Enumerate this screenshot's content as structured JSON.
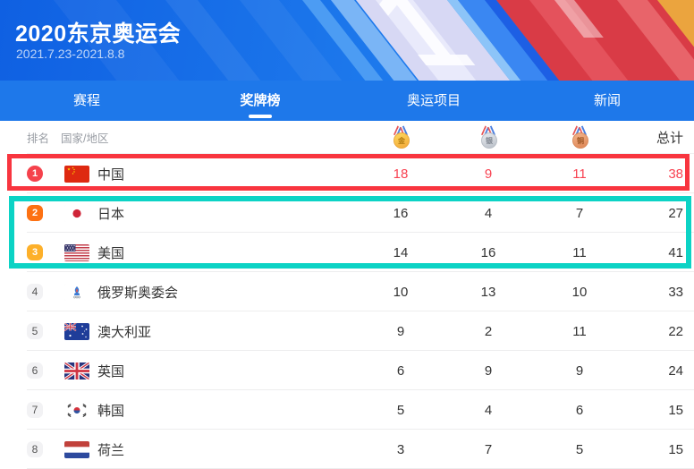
{
  "header": {
    "title": "2020东京奥运会",
    "date_range": "2021.7.23-2021.8.8",
    "decor_number": "1"
  },
  "nav": {
    "tabs": [
      {
        "label": "赛程",
        "active": false
      },
      {
        "label": "奖牌榜",
        "active": true
      },
      {
        "label": "奥运项目",
        "active": false
      },
      {
        "label": "新闻",
        "active": false
      }
    ]
  },
  "table": {
    "columns": {
      "rank": "排名",
      "country": "国家/地区",
      "total": "总计"
    },
    "medal_columns": [
      {
        "name": "gold-medal-icon",
        "char": "金"
      },
      {
        "name": "silver-medal-icon",
        "char": "银"
      },
      {
        "name": "bronze-medal-icon",
        "char": "铜"
      }
    ],
    "rows": [
      {
        "rank": 1,
        "country": "中国",
        "flag": "cn",
        "gold": 18,
        "silver": 9,
        "bronze": 11,
        "total": 38,
        "numbers_red": true
      },
      {
        "rank": 2,
        "country": "日本",
        "flag": "jp",
        "gold": 16,
        "silver": 4,
        "bronze": 7,
        "total": 27,
        "numbers_red": false
      },
      {
        "rank": 3,
        "country": "美国",
        "flag": "us",
        "gold": 14,
        "silver": 16,
        "bronze": 11,
        "total": 41,
        "numbers_red": false
      },
      {
        "rank": 4,
        "country": "俄罗斯奥委会",
        "flag": "roc",
        "gold": 10,
        "silver": 13,
        "bronze": 10,
        "total": 33,
        "numbers_red": false
      },
      {
        "rank": 5,
        "country": "澳大利亚",
        "flag": "au",
        "gold": 9,
        "silver": 2,
        "bronze": 11,
        "total": 22,
        "numbers_red": false
      },
      {
        "rank": 6,
        "country": "英国",
        "flag": "gb",
        "gold": 6,
        "silver": 9,
        "bronze": 9,
        "total": 24,
        "numbers_red": false
      },
      {
        "rank": 7,
        "country": "韩国",
        "flag": "kr",
        "gold": 5,
        "silver": 4,
        "bronze": 6,
        "total": 15,
        "numbers_red": false
      },
      {
        "rank": 8,
        "country": "荷兰",
        "flag": "nl",
        "gold": 3,
        "silver": 7,
        "bronze": 5,
        "total": 15,
        "numbers_red": false
      }
    ]
  },
  "annotations": {
    "row1_outline_color": "#f8353f",
    "rows2_3_outline_color": "#0cd3c5"
  },
  "colors": {
    "nav_blue": "#1e78ea",
    "header_blue_start": "#0f60e2",
    "header_blue_end": "#2080ee",
    "highlight_number_red": "#f84352",
    "rank1_badge": "#f5424c",
    "rank2_badge": "#fd7113",
    "rank3_badge": "#fdb02a"
  }
}
